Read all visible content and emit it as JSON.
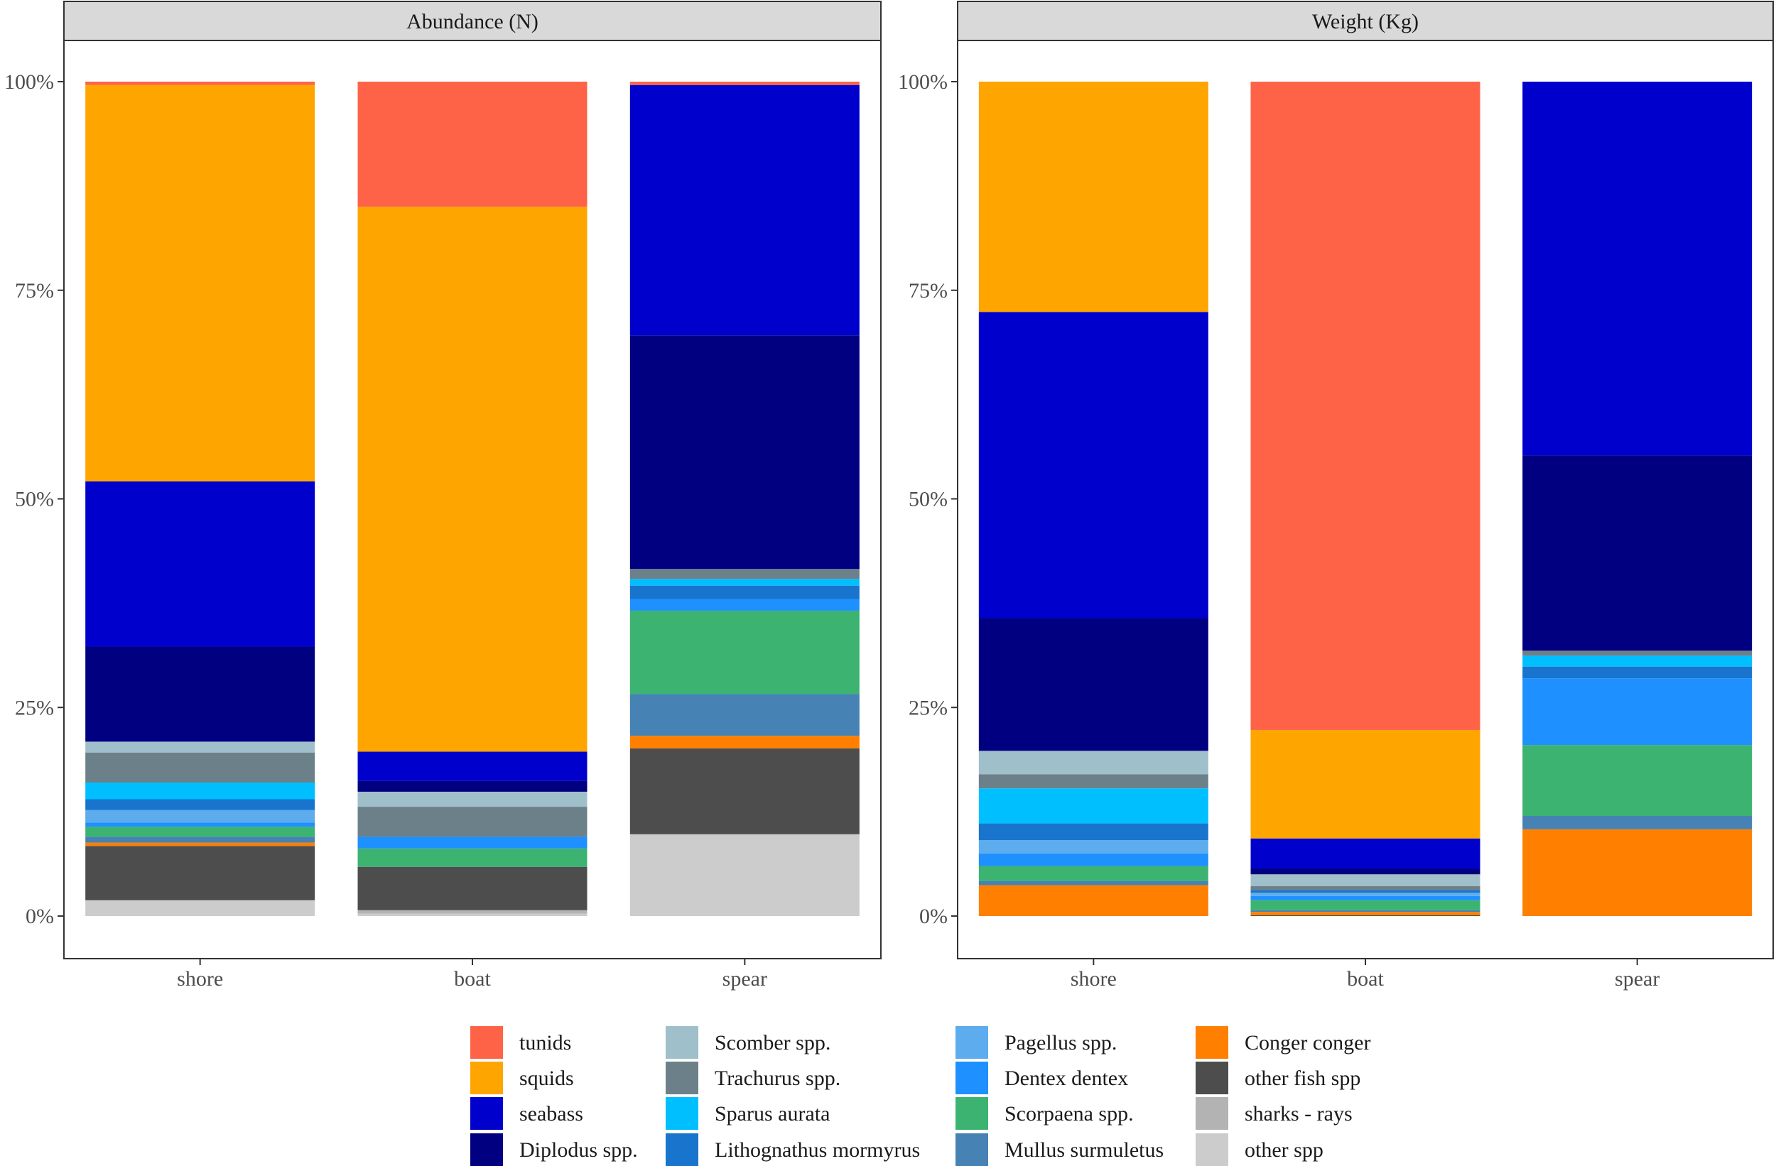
{
  "chart_data": {
    "type": "bar",
    "stacked": true,
    "percent": true,
    "categories": [
      "shore",
      "boat",
      "spear"
    ],
    "y_ticks": [
      "0%",
      "25%",
      "50%",
      "75%",
      "100%"
    ],
    "ylim": [
      0,
      100
    ],
    "species": [
      {
        "name": "tunids",
        "color": "#FF6347"
      },
      {
        "name": "squids",
        "color": "#FFA500"
      },
      {
        "name": "seabass",
        "color": "#0000CD"
      },
      {
        "name": "Diplodus spp.",
        "color": "#000080"
      },
      {
        "name": "Scomber spp.",
        "color": "#9FBFCB"
      },
      {
        "name": "Trachurus spp.",
        "color": "#6C8089"
      },
      {
        "name": "Sparus aurata",
        "color": "#00BFFF"
      },
      {
        "name": "Lithognathus mormyrus",
        "color": "#1874CD"
      },
      {
        "name": "Pagellus spp.",
        "color": "#5CACEE"
      },
      {
        "name": "Dentex dentex",
        "color": "#1E90FF"
      },
      {
        "name": "Scorpaena spp.",
        "color": "#3CB371"
      },
      {
        "name": "Mullus surmuletus",
        "color": "#4682B4"
      },
      {
        "name": "Conger conger",
        "color": "#FF7F00"
      },
      {
        "name": "other fish spp",
        "color": "#4D4D4D"
      },
      {
        "name": "sharks - rays",
        "color": "#B3B3B3"
      },
      {
        "name": "other spp",
        "color": "#CCCCCC"
      }
    ],
    "panels": [
      {
        "title": "Abundance (N)",
        "series": [
          {
            "name": "tunids",
            "values": [
              0.4,
              15.0,
              0.4
            ]
          },
          {
            "name": "squids",
            "values": [
              47.5,
              65.3,
              0.0
            ]
          },
          {
            "name": "seabass",
            "values": [
              19.8,
              3.5,
              30.0
            ]
          },
          {
            "name": "Diplodus spp.",
            "values": [
              11.4,
              1.3,
              28.0
            ]
          },
          {
            "name": "Scomber spp.",
            "values": [
              1.3,
              1.8,
              0.0
            ]
          },
          {
            "name": "Trachurus spp.",
            "values": [
              3.6,
              3.6,
              1.2
            ]
          },
          {
            "name": "Sparus aurata",
            "values": [
              2.0,
              0.0,
              0.8
            ]
          },
          {
            "name": "Lithognathus mormyrus",
            "values": [
              1.3,
              0.0,
              1.6
            ]
          },
          {
            "name": "Pagellus spp.",
            "values": [
              1.5,
              0.0,
              0.0
            ]
          },
          {
            "name": "Dentex dentex",
            "values": [
              0.5,
              1.4,
              1.4
            ]
          },
          {
            "name": "Scorpaena spp.",
            "values": [
              1.2,
              2.2,
              10.0
            ]
          },
          {
            "name": "Mullus surmuletus",
            "values": [
              0.7,
              0.0,
              5.0
            ]
          },
          {
            "name": "Conger conger",
            "values": [
              0.4,
              0.0,
              1.5
            ]
          },
          {
            "name": "other fish spp",
            "values": [
              6.5,
              5.2,
              10.3
            ]
          },
          {
            "name": "sharks - rays",
            "values": [
              0.0,
              0.4,
              0.0
            ]
          },
          {
            "name": "other spp",
            "values": [
              1.9,
              0.3,
              9.8
            ]
          }
        ]
      },
      {
        "title": "Weight (Kg)",
        "series": [
          {
            "name": "tunids",
            "values": [
              0.0,
              77.7,
              0.0
            ]
          },
          {
            "name": "squids",
            "values": [
              27.6,
              13.0,
              0.0
            ]
          },
          {
            "name": "seabass",
            "values": [
              36.7,
              3.6,
              44.8
            ]
          },
          {
            "name": "Diplodus spp.",
            "values": [
              15.9,
              0.7,
              23.4
            ]
          },
          {
            "name": "Scomber spp.",
            "values": [
              2.8,
              1.4,
              0.0
            ]
          },
          {
            "name": "Trachurus spp.",
            "values": [
              1.7,
              0.5,
              0.6
            ]
          },
          {
            "name": "Sparus aurata",
            "values": [
              4.2,
              0.0,
              1.3
            ]
          },
          {
            "name": "Lithognathus mormyrus",
            "values": [
              2.0,
              0.3,
              1.4
            ]
          },
          {
            "name": "Pagellus spp.",
            "values": [
              1.6,
              0.4,
              0.0
            ]
          },
          {
            "name": "Dentex dentex",
            "values": [
              1.5,
              0.5,
              8.0
            ]
          },
          {
            "name": "Scorpaena spp.",
            "values": [
              1.8,
              1.2,
              8.5
            ]
          },
          {
            "name": "Mullus surmuletus",
            "values": [
              0.5,
              0.2,
              1.6
            ]
          },
          {
            "name": "Conger conger",
            "values": [
              3.7,
              0.4,
              10.4
            ]
          },
          {
            "name": "other fish spp",
            "values": [
              0.0,
              0.1,
              0.0
            ]
          },
          {
            "name": "sharks - rays",
            "values": [
              0.0,
              0.0,
              0.0
            ]
          },
          {
            "name": "other spp",
            "values": [
              0.0,
              0.0,
              0.0
            ]
          }
        ]
      }
    ]
  }
}
